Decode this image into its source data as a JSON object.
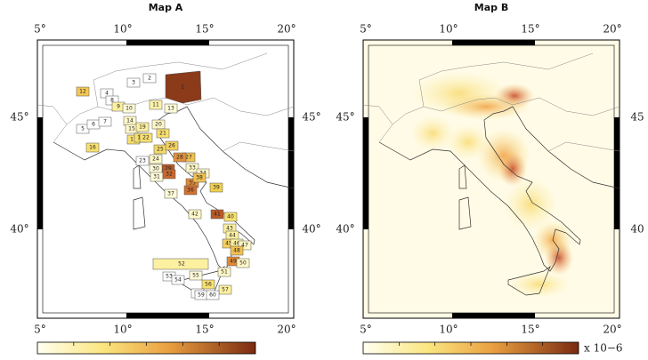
{
  "maps": [
    {
      "title": "Map A",
      "lon_labels": [
        "5°",
        "10°",
        "15°",
        "20°"
      ],
      "lat_labels": [
        "45°",
        "40°"
      ],
      "right_lat_labels": [
        "45°",
        "40°"
      ]
    },
    {
      "title": "Map B",
      "lon_labels": [
        "5°",
        "10°",
        "15°",
        "20°"
      ],
      "lat_labels": [
        "45°",
        "40°"
      ],
      "right_lat_labels": [
        "45",
        "40"
      ]
    }
  ],
  "zones": [
    {
      "label": "1",
      "color": "#8b3a1a"
    },
    {
      "label": "2",
      "color": "#ffffff"
    },
    {
      "label": "3",
      "color": "#ffffff"
    },
    {
      "label": "4",
      "color": "#ffffff"
    },
    {
      "label": "5",
      "color": "#ffffff"
    },
    {
      "label": "6",
      "color": "#ffffff"
    },
    {
      "label": "7",
      "color": "#ffffff"
    },
    {
      "label": "8",
      "color": "#ffffff"
    },
    {
      "label": "9",
      "color": "#fdf0a0"
    },
    {
      "label": "10",
      "color": "#fffbd8"
    },
    {
      "label": "11",
      "color": "#fdf3a8"
    },
    {
      "label": "12",
      "color": "#f3c855"
    },
    {
      "label": "13",
      "color": "#fffbd8"
    },
    {
      "label": "14",
      "color": "#fff8c8"
    },
    {
      "label": "15",
      "color": "#fff8c8"
    },
    {
      "label": "16",
      "color": "#f8e070"
    },
    {
      "label": "17",
      "color": "#f8e070"
    },
    {
      "label": "18",
      "color": "#f8e070"
    },
    {
      "label": "19",
      "color": "#fdf0a0"
    },
    {
      "label": "20",
      "color": "#fff8c8"
    },
    {
      "label": "21",
      "color": "#f8e070"
    },
    {
      "label": "22",
      "color": "#f8e070"
    },
    {
      "label": "23",
      "color": "#ffffff"
    },
    {
      "label": "24",
      "color": "#fff8c8"
    },
    {
      "label": "25",
      "color": "#f5d868"
    },
    {
      "label": "26",
      "color": "#f3d060"
    },
    {
      "label": "27",
      "color": "#f0c050"
    },
    {
      "label": "28",
      "color": "#e09040"
    },
    {
      "label": "29",
      "color": "#b85a28"
    },
    {
      "label": "30",
      "color": "#fffbd8"
    },
    {
      "label": "31",
      "color": "#fffbd8"
    },
    {
      "label": "32",
      "color": "#c86830"
    },
    {
      "label": "33",
      "color": "#fff8c8"
    },
    {
      "label": "34",
      "color": "#fff8c8"
    },
    {
      "label": "35",
      "color": "#e08a38"
    },
    {
      "label": "36",
      "color": "#d07030"
    },
    {
      "label": "37",
      "color": "#fffbd8"
    },
    {
      "label": "38",
      "color": "#f0c050"
    },
    {
      "label": "39",
      "color": "#f0d050"
    },
    {
      "label": "40",
      "color": "#f8e070"
    },
    {
      "label": "41",
      "color": "#b85a28"
    },
    {
      "label": "42",
      "color": "#fff8c8"
    },
    {
      "label": "43",
      "color": "#fdf0a0"
    },
    {
      "label": "44",
      "color": "#fdf0a0"
    },
    {
      "label": "45",
      "color": "#f3d060"
    },
    {
      "label": "46",
      "color": "#fdf0a0"
    },
    {
      "label": "47",
      "color": "#fff8c8"
    },
    {
      "label": "48",
      "color": "#f0c050"
    },
    {
      "label": "49",
      "color": "#e08a38"
    },
    {
      "label": "50",
      "color": "#fff8c8"
    },
    {
      "label": "51",
      "color": "#fff8c8"
    },
    {
      "label": "52",
      "color": "#fdf0a0"
    },
    {
      "label": "53",
      "color": "#ffffff"
    },
    {
      "label": "54",
      "color": "#ffffff"
    },
    {
      "label": "55",
      "color": "#fffbd8"
    },
    {
      "label": "56",
      "color": "#f8e070"
    },
    {
      "label": "57",
      "color": "#fdf0a0"
    },
    {
      "label": "58",
      "color": "#ffffff"
    },
    {
      "label": "59",
      "color": "#ffffff"
    },
    {
      "label": "60",
      "color": "#ffffff"
    }
  ],
  "colorbar_unit": "x 10−6"
}
